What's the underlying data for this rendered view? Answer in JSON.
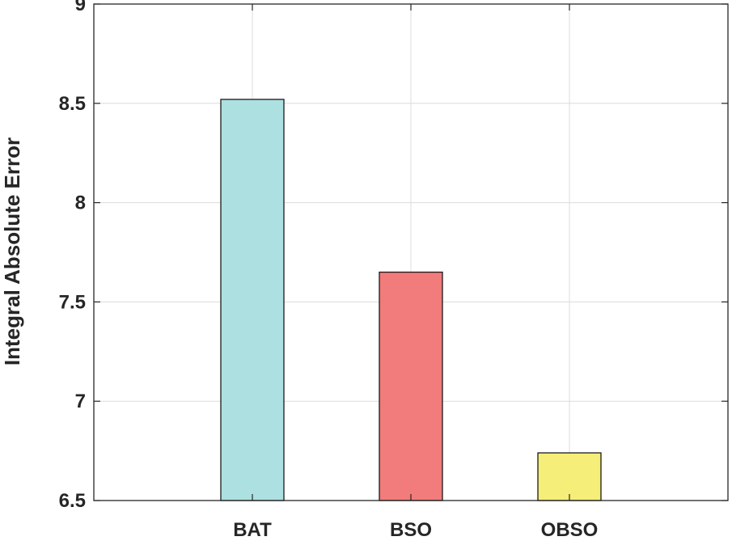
{
  "chart_data": {
    "type": "bar",
    "title": "",
    "xlabel": "",
    "ylabel": "Integral Absolute Error",
    "categories": [
      "BAT",
      "BSO",
      "OBSO"
    ],
    "values": [
      8.52,
      7.65,
      6.74
    ],
    "ylim": [
      6.5,
      9
    ],
    "yticks": [
      "6.5",
      "7",
      "7.5",
      "8",
      "8.5",
      "9"
    ],
    "grid": true,
    "legend": "none",
    "bar_colors": [
      "#ade0e0",
      "#f27b7b",
      "#f5ee78"
    ],
    "bar_edge_color": "#1a1a1a",
    "grid_color": "#dcdcdc",
    "axis_color": "#262626"
  }
}
